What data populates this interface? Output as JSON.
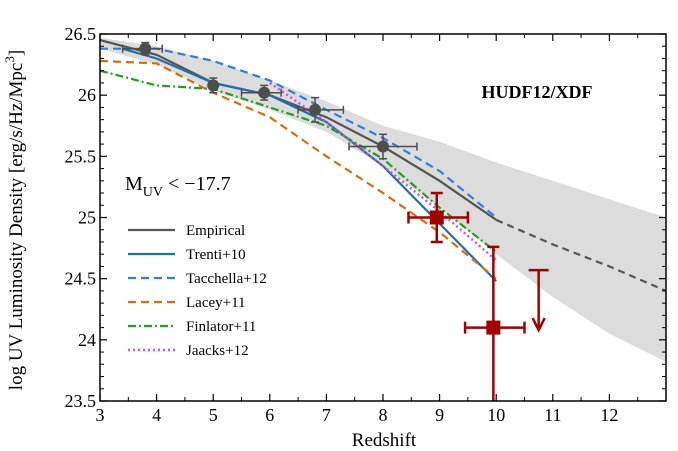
{
  "chart_data": {
    "type": "line",
    "xlabel": "Redshift",
    "ylabel": "log UV Luminosity Density [erg/s/Hz/Mpc",
    "ylabel_sup": "3",
    "ylabel_end": "]",
    "xlim": [
      3,
      13
    ],
    "ylim": [
      23.5,
      26.5
    ],
    "x_ticks": [
      3,
      4,
      5,
      6,
      7,
      8,
      9,
      10,
      11,
      12
    ],
    "y_ticks": [
      {
        "value": 23.5,
        "label": "23.5"
      },
      {
        "value": 24,
        "label": "24"
      },
      {
        "value": 24.5,
        "label": "24.5"
      },
      {
        "value": 25,
        "label": "25"
      },
      {
        "value": 25.5,
        "label": "25.5"
      },
      {
        "value": 26,
        "label": "26"
      },
      {
        "value": 26.5,
        "label": "26.5"
      }
    ],
    "annotation": "HUDF12/XDF",
    "annotation_color": "#a00000",
    "muv_label": {
      "main": "M",
      "sub": "UV",
      "rest": " < −17.7"
    },
    "legend_position": "left-center",
    "confidence_band": {
      "color": "#dcdcdc",
      "x": [
        3,
        4,
        5,
        6,
        7,
        8,
        9,
        10,
        11,
        12,
        13
      ],
      "upper": [
        26.47,
        26.4,
        26.28,
        26.12,
        25.95,
        25.75,
        25.62,
        25.45,
        25.3,
        25.15,
        25.0
      ],
      "lower": [
        26.38,
        26.25,
        26.04,
        25.88,
        25.7,
        25.42,
        25.08,
        24.7,
        24.35,
        24.05,
        23.82
      ]
    },
    "series": [
      {
        "name": "Empirical",
        "color": "#555555",
        "dash": "solid",
        "width": 2.2,
        "x": [
          3,
          4,
          5,
          6,
          7,
          8,
          9,
          10
        ],
        "y": [
          26.45,
          26.33,
          26.1,
          26.0,
          25.82,
          25.58,
          25.3,
          24.98
        ]
      },
      {
        "name": "Empirical extrapolation",
        "color": "#555555",
        "dash": "7,5",
        "width": 2.2,
        "legend": false,
        "x": [
          10,
          11,
          12,
          13
        ],
        "y": [
          24.98,
          24.78,
          24.6,
          24.4
        ]
      },
      {
        "name": "Trenti+10",
        "color": "#1f6fa8",
        "dash": "solid",
        "width": 2.2,
        "x": [
          3.4,
          4,
          5,
          6,
          7,
          8,
          9,
          10
        ],
        "y": [
          26.38,
          26.3,
          26.1,
          26.0,
          25.78,
          25.42,
          24.95,
          24.48
        ]
      },
      {
        "name": "Tacchella+12",
        "color": "#2f7fe0",
        "dash": "8,5",
        "width": 2.2,
        "x": [
          3,
          4,
          5,
          6,
          7,
          8,
          9,
          10
        ],
        "y": [
          26.38,
          26.38,
          26.28,
          26.12,
          25.88,
          25.65,
          25.38,
          25.0
        ]
      },
      {
        "name": "Lacey+11",
        "color": "#d07010",
        "dash": "8,5",
        "width": 2.2,
        "x": [
          3,
          4,
          5,
          6,
          7,
          8,
          9,
          10
        ],
        "y": [
          26.28,
          26.26,
          26.02,
          25.82,
          25.5,
          25.2,
          24.88,
          24.5
        ]
      },
      {
        "name": "Finlator+11",
        "color": "#20a020",
        "dash": "8,3,2,3",
        "width": 2.2,
        "x": [
          3,
          4,
          5,
          6,
          7,
          8,
          9,
          10
        ],
        "y": [
          26.2,
          26.08,
          26.05,
          25.9,
          25.75,
          25.48,
          25.08,
          24.72
        ]
      },
      {
        "name": "Jaacks+12",
        "color": "#d050d0",
        "dash": "2,3",
        "width": 2.5,
        "x": [
          6,
          7,
          8,
          9,
          10
        ],
        "y": [
          26.1,
          25.78,
          25.42,
          25.05,
          24.65
        ]
      }
    ],
    "data_points": {
      "color": "#4d4d4d",
      "points": [
        {
          "x": 3.8,
          "y": 26.38,
          "xerr": [
            0.4,
            0.3
          ],
          "yerr": [
            0.05,
            0.05
          ]
        },
        {
          "x": 5.0,
          "y": 26.08,
          "xerr": [
            0.0,
            0.0
          ],
          "yerr": [
            0.06,
            0.06
          ]
        },
        {
          "x": 5.9,
          "y": 26.02,
          "xerr": [
            0.4,
            0.3
          ],
          "yerr": [
            0.06,
            0.06
          ]
        },
        {
          "x": 6.8,
          "y": 25.88,
          "xerr": [
            0.3,
            0.5
          ],
          "yerr": [
            0.1,
            0.1
          ]
        },
        {
          "x": 8.0,
          "y": 25.58,
          "xerr": [
            0.6,
            0.6
          ],
          "yerr": [
            0.1,
            0.1
          ]
        }
      ]
    },
    "hudf_points": {
      "color": "#a00000",
      "points": [
        {
          "x": 8.95,
          "y": 25.0,
          "xerr": [
            0.5,
            0.55
          ],
          "yerr": [
            0.2,
            0.2
          ]
        },
        {
          "x": 9.95,
          "y": 24.1,
          "xerr": [
            0.5,
            0.55
          ],
          "yerr": [
            0.66,
            0.66
          ]
        }
      ],
      "upper_limit": {
        "x": 10.75,
        "y": 24.57,
        "to": 24.08
      }
    }
  }
}
